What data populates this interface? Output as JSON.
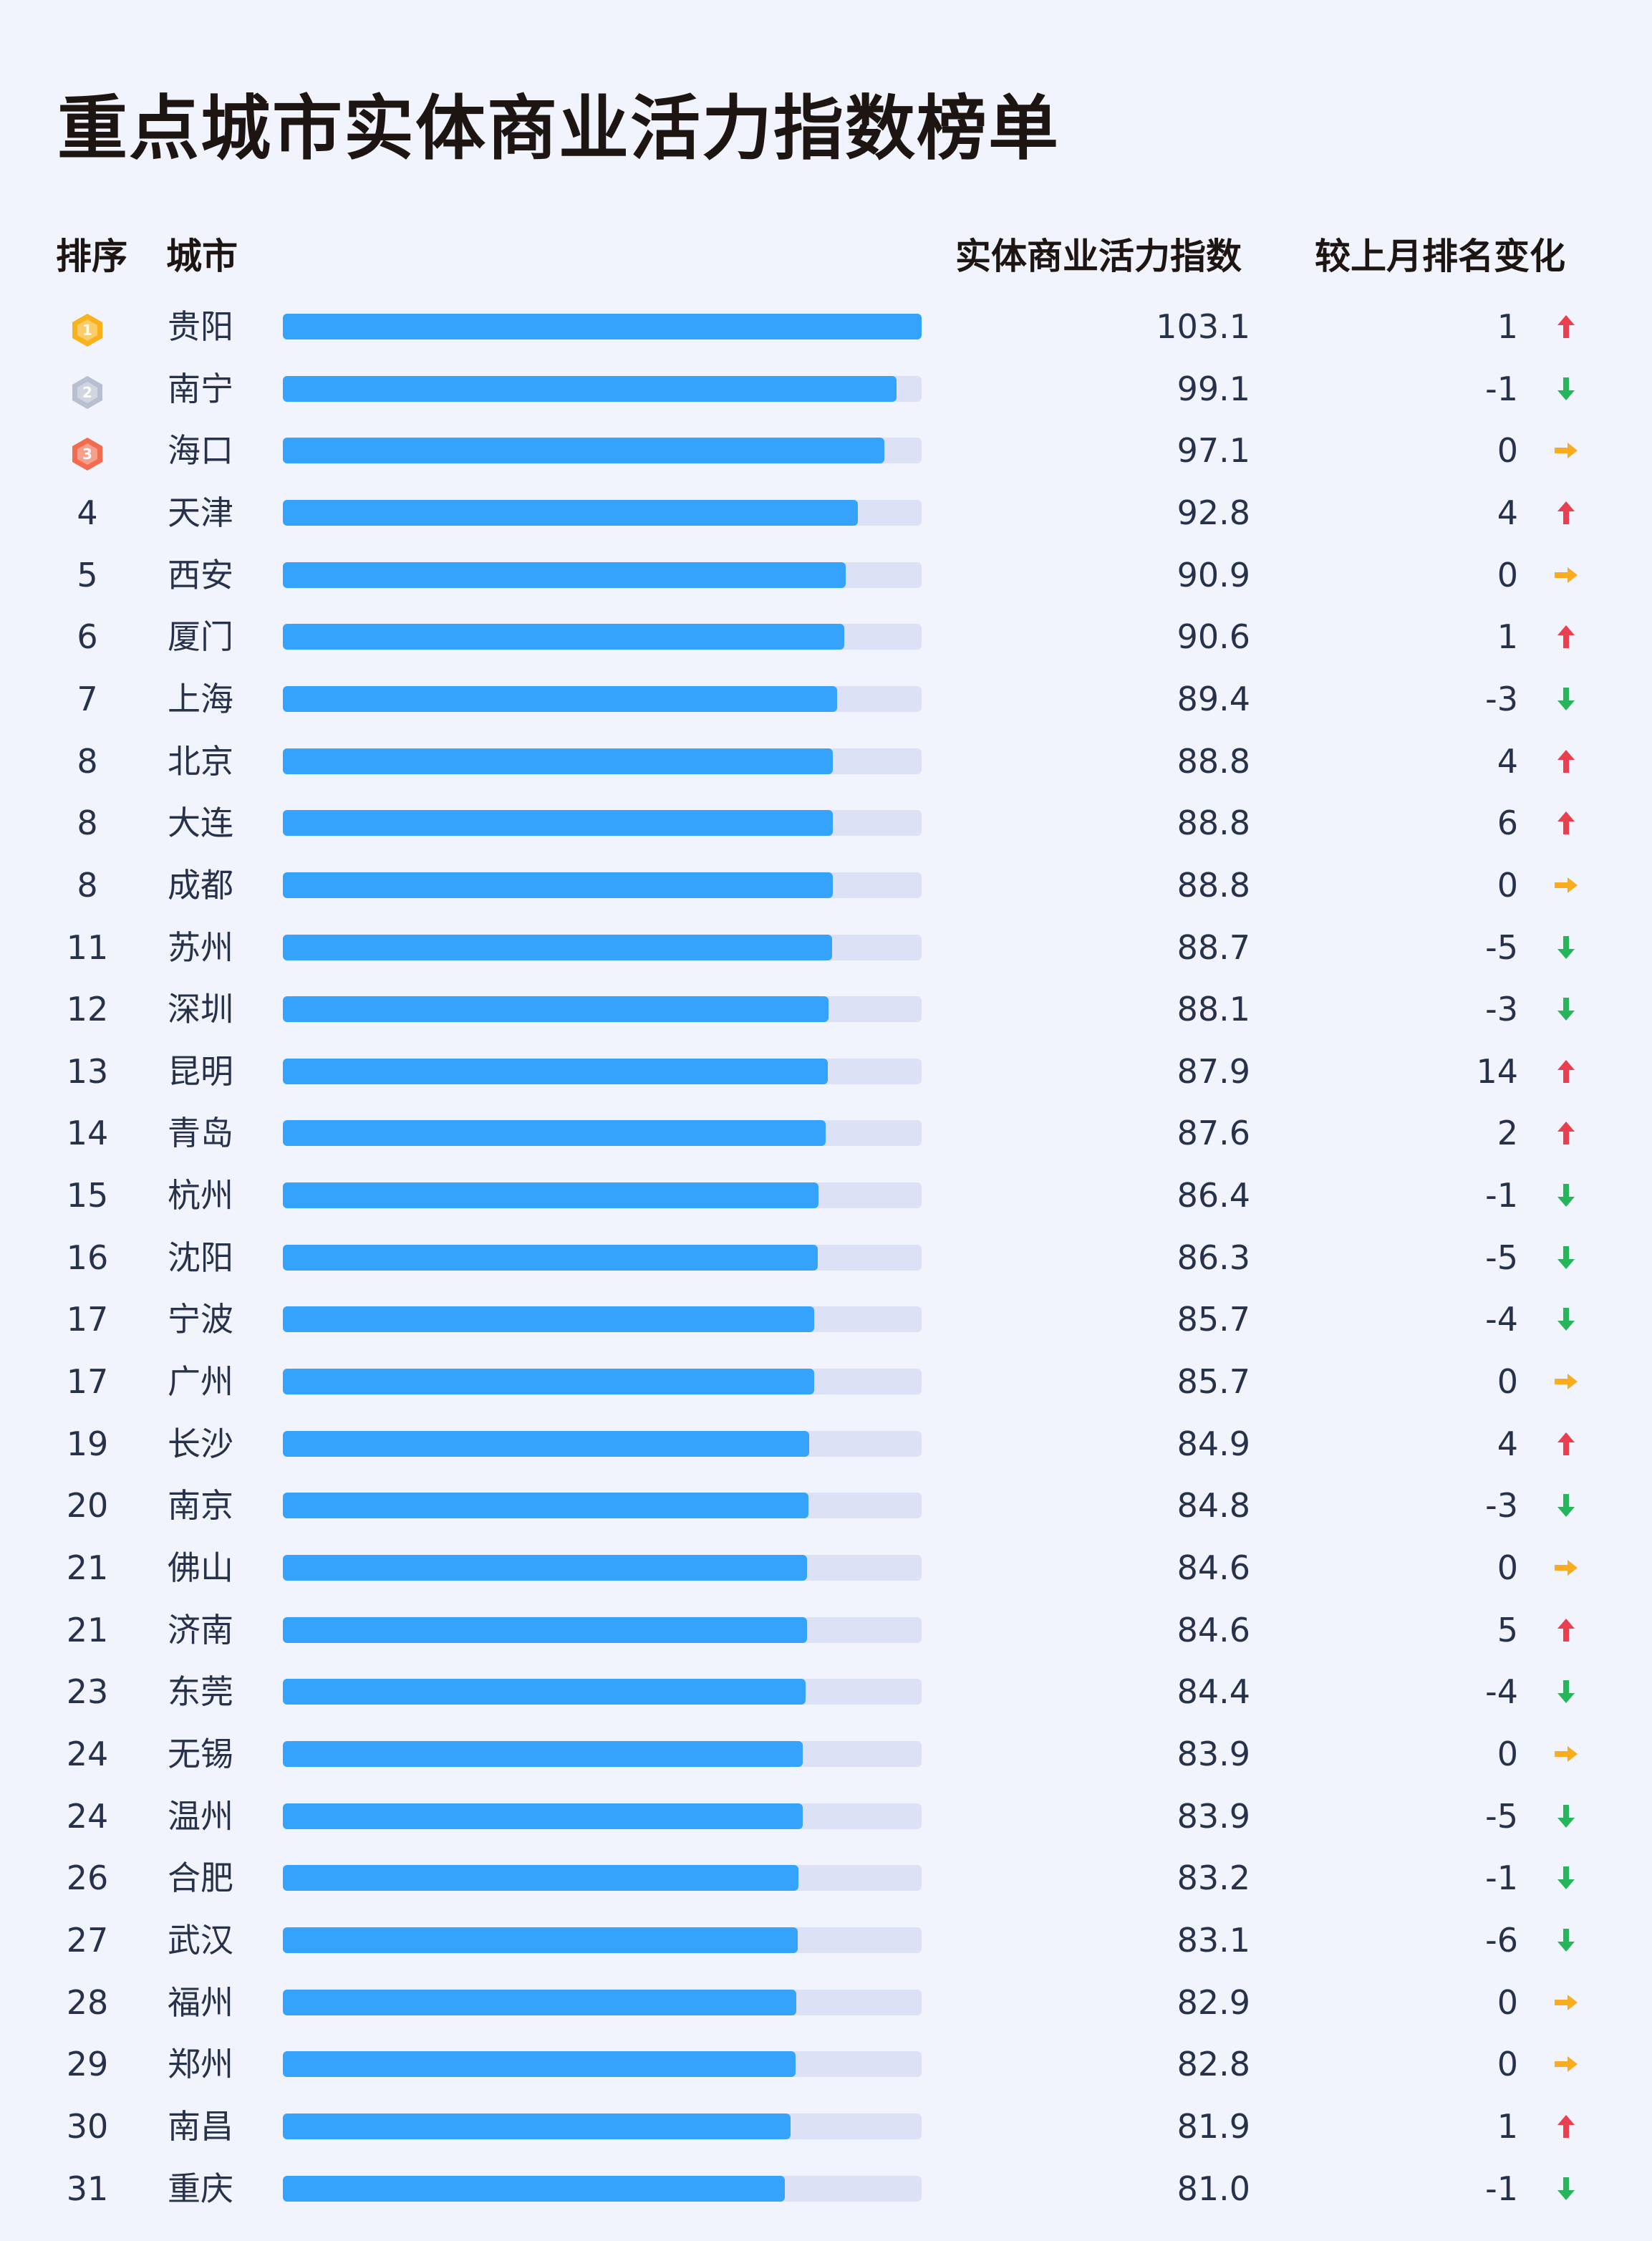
{
  "title": "重点城市实体商业活力指数榜单",
  "headers": {
    "rank": "排序",
    "city": "城市",
    "value": "实体商业活力指数",
    "change": "较上月排名变化"
  },
  "colors": {
    "bar_fill": "#35a3fb",
    "bar_track": "#dde1f5",
    "up": "#ea3f4f",
    "down": "#27b55b",
    "flat": "#f9ac1d",
    "medal_gold": "#f8b21b",
    "medal_silver": "#b8bfd0",
    "medal_bronze": "#f26c4f"
  },
  "chart_data": {
    "type": "bar",
    "orientation": "horizontal",
    "title": "重点城市实体商业活力指数榜单",
    "bar_scale_max": 103.1,
    "rows": [
      {
        "rank": "1",
        "medal": "gold",
        "city": "贵阳",
        "value": 103.1,
        "value_label": "103.1",
        "change": "1",
        "direction": "up"
      },
      {
        "rank": "2",
        "medal": "silver",
        "city": "南宁",
        "value": 99.1,
        "value_label": "99.1",
        "change": "-1",
        "direction": "down"
      },
      {
        "rank": "3",
        "medal": "bronze",
        "city": "海口",
        "value": 97.1,
        "value_label": "97.1",
        "change": "0",
        "direction": "flat"
      },
      {
        "rank": "4",
        "city": "天津",
        "value": 92.8,
        "value_label": "92.8",
        "change": "4",
        "direction": "up"
      },
      {
        "rank": "5",
        "city": "西安",
        "value": 90.9,
        "value_label": "90.9",
        "change": "0",
        "direction": "flat"
      },
      {
        "rank": "6",
        "city": "厦门",
        "value": 90.6,
        "value_label": "90.6",
        "change": "1",
        "direction": "up"
      },
      {
        "rank": "7",
        "city": "上海",
        "value": 89.4,
        "value_label": "89.4",
        "change": "-3",
        "direction": "down"
      },
      {
        "rank": "8",
        "city": "北京",
        "value": 88.8,
        "value_label": "88.8",
        "change": "4",
        "direction": "up"
      },
      {
        "rank": "8",
        "city": "大连",
        "value": 88.8,
        "value_label": "88.8",
        "change": "6",
        "direction": "up"
      },
      {
        "rank": "8",
        "city": "成都",
        "value": 88.8,
        "value_label": "88.8",
        "change": "0",
        "direction": "flat"
      },
      {
        "rank": "11",
        "city": "苏州",
        "value": 88.7,
        "value_label": "88.7",
        "change": "-5",
        "direction": "down"
      },
      {
        "rank": "12",
        "city": "深圳",
        "value": 88.1,
        "value_label": "88.1",
        "change": "-3",
        "direction": "down"
      },
      {
        "rank": "13",
        "city": "昆明",
        "value": 87.9,
        "value_label": "87.9",
        "change": "14",
        "direction": "up"
      },
      {
        "rank": "14",
        "city": "青岛",
        "value": 87.6,
        "value_label": "87.6",
        "change": "2",
        "direction": "up"
      },
      {
        "rank": "15",
        "city": "杭州",
        "value": 86.4,
        "value_label": "86.4",
        "change": "-1",
        "direction": "down"
      },
      {
        "rank": "16",
        "city": "沈阳",
        "value": 86.3,
        "value_label": "86.3",
        "change": "-5",
        "direction": "down"
      },
      {
        "rank": "17",
        "city": "宁波",
        "value": 85.7,
        "value_label": "85.7",
        "change": "-4",
        "direction": "down"
      },
      {
        "rank": "17",
        "city": "广州",
        "value": 85.7,
        "value_label": "85.7",
        "change": "0",
        "direction": "flat"
      },
      {
        "rank": "19",
        "city": "长沙",
        "value": 84.9,
        "value_label": "84.9",
        "change": "4",
        "direction": "up"
      },
      {
        "rank": "20",
        "city": "南京",
        "value": 84.8,
        "value_label": "84.8",
        "change": "-3",
        "direction": "down"
      },
      {
        "rank": "21",
        "city": "佛山",
        "value": 84.6,
        "value_label": "84.6",
        "change": "0",
        "direction": "flat"
      },
      {
        "rank": "21",
        "city": "济南",
        "value": 84.6,
        "value_label": "84.6",
        "change": "5",
        "direction": "up"
      },
      {
        "rank": "23",
        "city": "东莞",
        "value": 84.4,
        "value_label": "84.4",
        "change": "-4",
        "direction": "down"
      },
      {
        "rank": "24",
        "city": "无锡",
        "value": 83.9,
        "value_label": "83.9",
        "change": "0",
        "direction": "flat"
      },
      {
        "rank": "24",
        "city": "温州",
        "value": 83.9,
        "value_label": "83.9",
        "change": "-5",
        "direction": "down"
      },
      {
        "rank": "26",
        "city": "合肥",
        "value": 83.2,
        "value_label": "83.2",
        "change": "-1",
        "direction": "down"
      },
      {
        "rank": "27",
        "city": "武汉",
        "value": 83.1,
        "value_label": "83.1",
        "change": "-6",
        "direction": "down"
      },
      {
        "rank": "28",
        "city": "福州",
        "value": 82.9,
        "value_label": "82.9",
        "change": "0",
        "direction": "flat"
      },
      {
        "rank": "29",
        "city": "郑州",
        "value": 82.8,
        "value_label": "82.8",
        "change": "0",
        "direction": "flat"
      },
      {
        "rank": "30",
        "city": "南昌",
        "value": 81.9,
        "value_label": "81.9",
        "change": "1",
        "direction": "up"
      },
      {
        "rank": "31",
        "city": "重庆",
        "value": 81.0,
        "value_label": "81.0",
        "change": "-1",
        "direction": "down"
      }
    ]
  }
}
